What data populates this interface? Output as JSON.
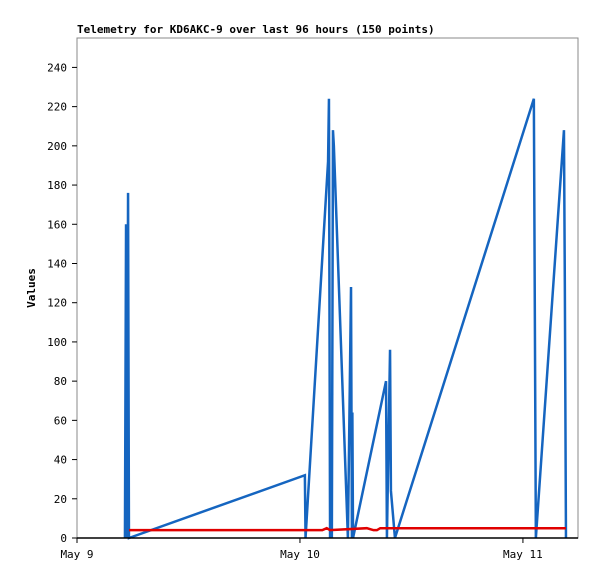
{
  "chart_data": {
    "type": "line",
    "title": "Telemetry for KD6AKC-9 over last 96 hours (150 points)",
    "y_label": "Values",
    "xlim": [
      0,
      2.247
    ],
    "ylim": [
      0,
      255
    ],
    "xticks": [
      {
        "value": 0,
        "label": "May 9"
      },
      {
        "value": 1,
        "label": "May 10"
      },
      {
        "value": 2,
        "label": "May 11"
      }
    ],
    "yticks": [
      0,
      20,
      40,
      60,
      80,
      100,
      120,
      140,
      160,
      180,
      200,
      220,
      240
    ],
    "series": [
      {
        "color": "#1565c0",
        "x": [
          0.215,
          0.22,
          0.224,
          0.229,
          0.233,
          1.022,
          1.025,
          1.126,
          1.13,
          1.135,
          1.139,
          1.143,
          1.148,
          1.152,
          1.215,
          1.229,
          1.233,
          1.235,
          1.238,
          1.386,
          1.39,
          1.404,
          1.408,
          1.426,
          2.049,
          2.058,
          2.184,
          2.188,
          2.193
        ],
        "values": [
          0,
          160,
          0,
          176,
          0,
          32,
          0,
          192,
          224,
          0,
          56,
          0,
          208,
          200,
          0,
          128,
          0,
          64,
          0,
          80,
          0,
          96,
          24,
          0,
          224,
          0,
          208,
          128,
          0
        ]
      },
      {
        "color": "#e00000",
        "x": [
          0.233,
          1.1,
          1.12,
          1.135,
          1.3,
          1.33,
          1.345,
          1.36,
          1.4,
          2.193
        ],
        "values": [
          4,
          4,
          5,
          4,
          5,
          4,
          4,
          5,
          5,
          5
        ]
      }
    ]
  }
}
